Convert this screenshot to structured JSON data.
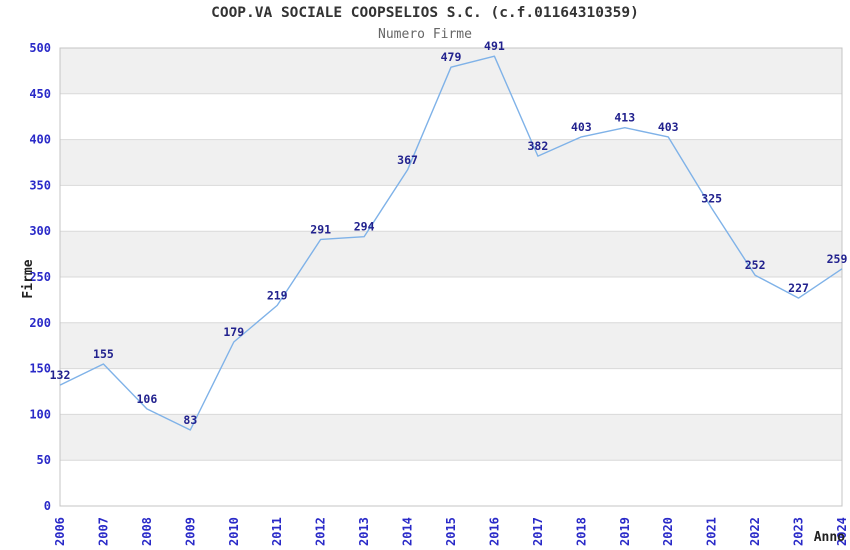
{
  "header": {
    "title": "COOP.VA SOCIALE COOPSELIOS S.C. (c.f.01164310359)",
    "subtitle": "Numero Firme"
  },
  "chart_data": {
    "type": "line",
    "title": "COOP.VA SOCIALE COOPSELIOS S.C. (c.f.01164310359)",
    "subtitle": "Numero Firme",
    "xlabel": "Anno",
    "ylabel": "Firme",
    "categories": [
      "2006",
      "2007",
      "2008",
      "2009",
      "2010",
      "2011",
      "2012",
      "2013",
      "2014",
      "2015",
      "2016",
      "2017",
      "2018",
      "2019",
      "2020",
      "2021",
      "2022",
      "2023",
      "2024"
    ],
    "values": [
      132,
      155,
      106,
      83,
      179,
      219,
      291,
      294,
      367,
      479,
      491,
      382,
      403,
      413,
      403,
      325,
      252,
      227,
      259
    ],
    "ylim": [
      0,
      500
    ],
    "ytick_step": 50,
    "legend": "none",
    "grid": "horizontal gridlines every 50 with alternating white/gray bands",
    "band_pattern": "bands 50-100, 150-200, 250-300, 350-400, 450-500 are gray",
    "colors": {
      "line": "#7fb2e8",
      "data_label": "#22228e",
      "tick_label": "#2a2ac8",
      "axis_title": "#222222",
      "band_gray": "#f0f0f0",
      "gridline": "#d9d9d9",
      "plot_border": "#c4c4c4",
      "title": "#333333",
      "subtitle": "#666666",
      "background": "#ffffff"
    }
  }
}
